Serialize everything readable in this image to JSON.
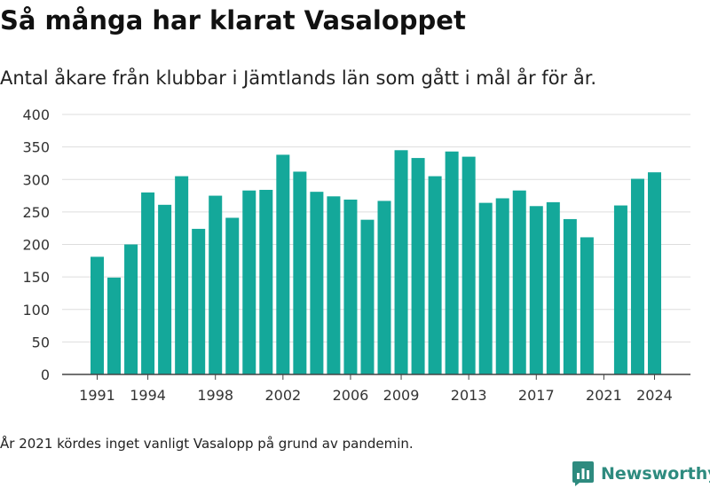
{
  "header": {
    "title": "Så många har klarat Vasaloppet",
    "subtitle": "Antal åkare från klubbar i Jämtlands län som gått i mål år för år."
  },
  "footer": {
    "note": "År 2021 kördes inget vanligt Vasalopp på grund av pandemin.",
    "brand": "Newsworthy",
    "brand_icon": "bar-chart-logo-icon"
  },
  "colors": {
    "bar": "#14a89a",
    "grid": "#dddddd",
    "axis": "#444444",
    "brand": "#2e8b7f"
  },
  "chart_data": {
    "type": "bar",
    "title": "Så många har klarat Vasaloppet",
    "subtitle": "Antal åkare från klubbar i Jämtlands län som gått i mål år för år.",
    "xlabel": "",
    "ylabel": "",
    "ylim": [
      0,
      400
    ],
    "yticks": [
      0,
      50,
      100,
      150,
      200,
      250,
      300,
      350,
      400
    ],
    "xtick_labels": [
      "1991",
      "1994",
      "1998",
      "2002",
      "2006",
      "2009",
      "2013",
      "2017",
      "2021",
      "2024"
    ],
    "grid": true,
    "legend": "none",
    "categories": [
      "1991",
      "1992",
      "1993",
      "1994",
      "1995",
      "1996",
      "1997",
      "1998",
      "1999",
      "2000",
      "2001",
      "2002",
      "2003",
      "2004",
      "2005",
      "2006",
      "2007",
      "2008",
      "2009",
      "2010",
      "2011",
      "2012",
      "2013",
      "2014",
      "2015",
      "2016",
      "2017",
      "2018",
      "2019",
      "2020",
      "2021",
      "2022",
      "2023",
      "2024"
    ],
    "values": [
      181,
      149,
      200,
      280,
      261,
      305,
      224,
      275,
      241,
      283,
      284,
      338,
      312,
      281,
      274,
      269,
      238,
      267,
      345,
      333,
      305,
      343,
      335,
      264,
      271,
      283,
      259,
      265,
      239,
      211,
      null,
      260,
      301,
      311
    ]
  }
}
